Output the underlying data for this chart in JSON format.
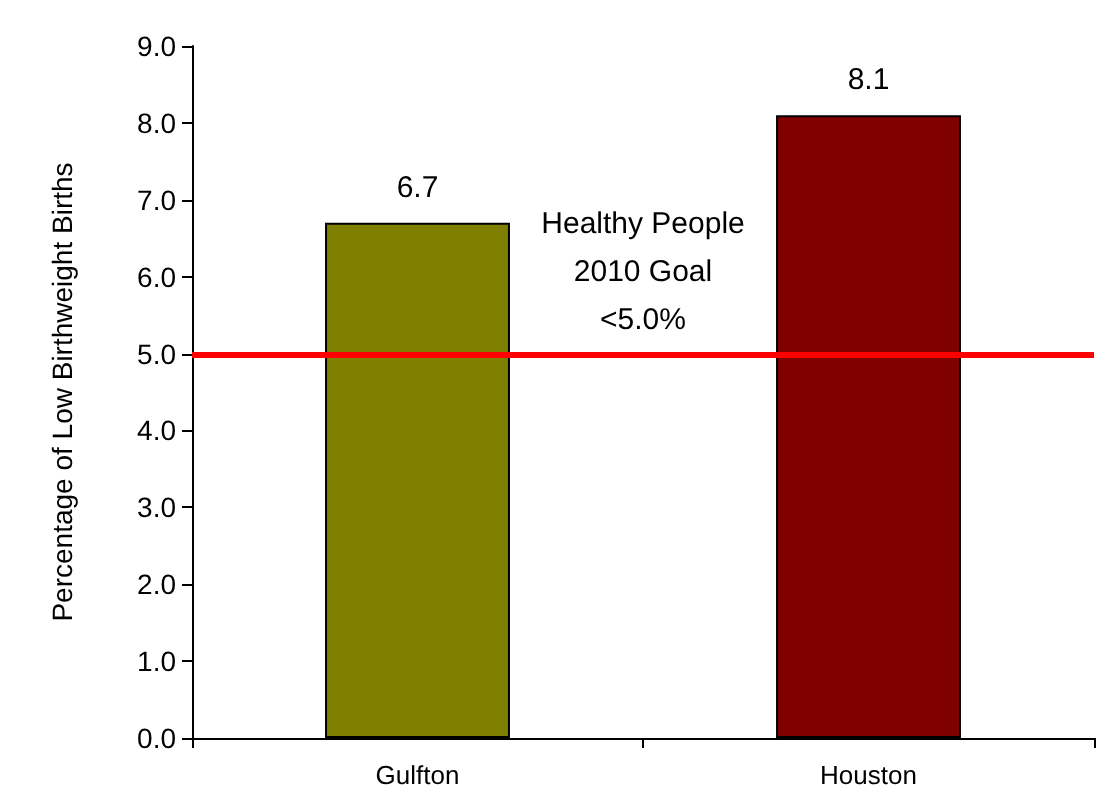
{
  "chart_data": {
    "type": "bar",
    "ylabel": "Percentage of Low Birthweight Births",
    "categories": [
      "Gulfton",
      "Houston"
    ],
    "values": [
      6.7,
      8.1
    ],
    "colors": [
      "#808000",
      "#800000"
    ],
    "ylim": [
      0,
      9
    ],
    "yticks": [
      {
        "value": 0,
        "label": "0.0"
      },
      {
        "value": 1,
        "label": "1.0"
      },
      {
        "value": 2,
        "label": "2.0"
      },
      {
        "value": 3,
        "label": "3.0"
      },
      {
        "value": 4,
        "label": "4.0"
      },
      {
        "value": 5,
        "label": "5.0"
      },
      {
        "value": 6,
        "label": "6.0"
      },
      {
        "value": 7,
        "label": "7.0"
      },
      {
        "value": 8,
        "label": "8.0"
      },
      {
        "value": 9,
        "label": "9.0"
      }
    ],
    "data_labels": true,
    "grid": false,
    "ref_lines": [
      {
        "axis": "y",
        "value": 5,
        "label": "Healthy People\n2010 Goal\n<5.0%",
        "color": "#ff0000"
      }
    ]
  }
}
